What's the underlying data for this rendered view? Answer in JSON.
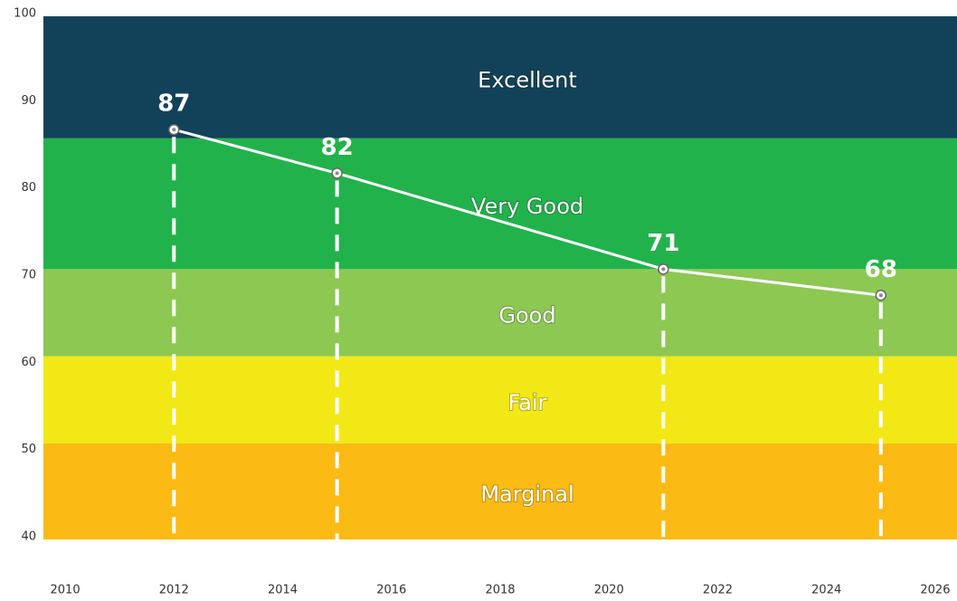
{
  "chart_data": {
    "type": "line",
    "xlim": [
      2009.6,
      2026.4
    ],
    "xticks": [
      2010,
      2012,
      2014,
      2016,
      2018,
      2020,
      2022,
      2024,
      2026
    ],
    "ylim": [
      40,
      100
    ],
    "yticks": [
      40,
      50,
      60,
      70,
      80,
      90,
      100
    ],
    "bands": [
      {
        "label": "Excellent",
        "from": 86,
        "to": 100,
        "color": "#12425a"
      },
      {
        "label": "Very Good",
        "from": 71,
        "to": 86,
        "color": "#22b24c"
      },
      {
        "label": "Good",
        "from": 61,
        "to": 71,
        "color": "#8dc853"
      },
      {
        "label": "Fair",
        "from": 51,
        "to": 61,
        "color": "#f2e816"
      },
      {
        "label": "Marginal",
        "from": 40,
        "to": 51,
        "color": "#fbba14"
      }
    ],
    "series": [
      {
        "x": [
          2012,
          2015,
          2021,
          2025
        ],
        "values": [
          87,
          82,
          71,
          68
        ],
        "color": "#ffffff"
      }
    ]
  }
}
